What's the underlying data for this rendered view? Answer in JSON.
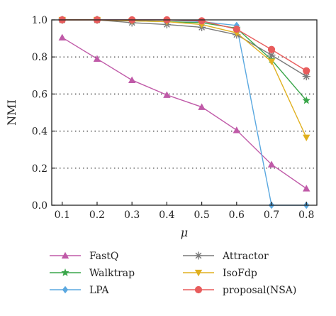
{
  "chart_data": {
    "type": "line",
    "xlabel": "μ",
    "ylabel": "NMI",
    "x": [
      0.1,
      0.2,
      0.3,
      0.4,
      0.5,
      0.6,
      0.7,
      0.8
    ],
    "xlim": [
      0.07,
      0.83
    ],
    "ylim": [
      0.0,
      1.0
    ],
    "x_ticks": [
      "0.1",
      "0.2",
      "0.3",
      "0.4",
      "0.5",
      "0.6",
      "0.7",
      "0.8"
    ],
    "y_ticks": [
      "0.0",
      "0.2",
      "0.4",
      "0.6",
      "0.8",
      "1.0"
    ],
    "grid": "horizontal dotted",
    "legend_position": "bottom",
    "series": [
      {
        "name": "FastQ",
        "color": "#c05aa8",
        "marker": "triangle-up",
        "values": [
          0.905,
          0.79,
          0.675,
          0.595,
          0.53,
          0.405,
          0.22,
          0.09
        ]
      },
      {
        "name": "Walktrap",
        "color": "#3aa64a",
        "marker": "star",
        "values": [
          1.0,
          1.0,
          0.995,
          0.99,
          0.985,
          0.955,
          0.785,
          0.565
        ]
      },
      {
        "name": "LPA",
        "color": "#5aa8e0",
        "marker": "diamond",
        "values": [
          1.0,
          1.0,
          1.0,
          1.0,
          0.99,
          0.97,
          0.0,
          0.0
        ]
      },
      {
        "name": "Attractor",
        "color": "#7a7a7a",
        "marker": "asterisk",
        "values": [
          1.0,
          1.0,
          0.985,
          0.975,
          0.96,
          0.92,
          0.81,
          0.695
        ]
      },
      {
        "name": "IsoFdp",
        "color": "#e0b020",
        "marker": "triangle-down",
        "values": [
          1.0,
          1.0,
          0.995,
          0.99,
          0.975,
          0.93,
          0.775,
          0.365
        ]
      },
      {
        "name": "proposal(NSA)",
        "color": "#e85c5c",
        "marker": "circle",
        "values": [
          1.0,
          1.0,
          1.0,
          1.0,
          0.995,
          0.95,
          0.84,
          0.725
        ]
      }
    ]
  }
}
